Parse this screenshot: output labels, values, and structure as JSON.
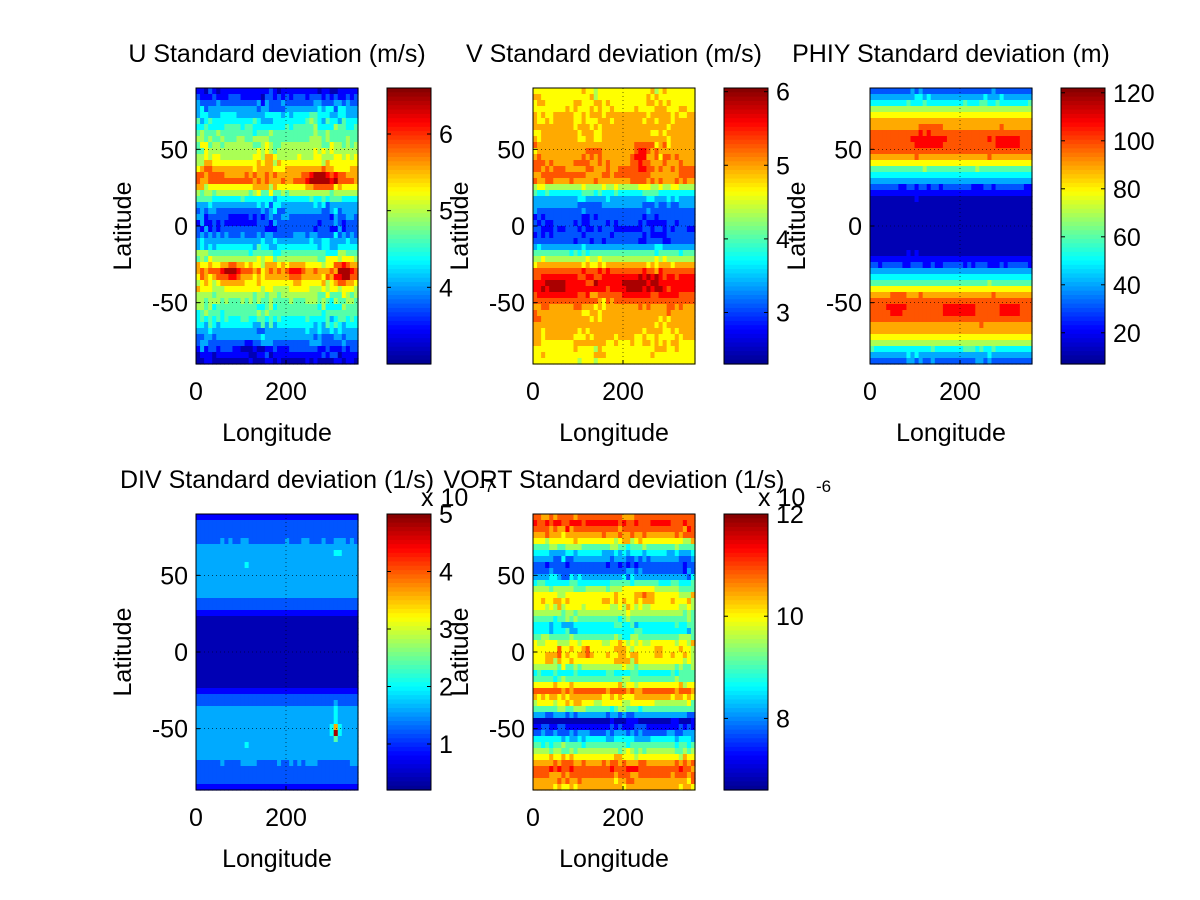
{
  "colormap": [
    "#00008F",
    "#0000FF",
    "#0080FF",
    "#00FFFF",
    "#80FF80",
    "#FFFF00",
    "#FF8000",
    "#FF0000",
    "#800000"
  ],
  "chart_data": [
    {
      "id": "u",
      "type": "heatmap",
      "title": "U Standard deviation (m/s)",
      "xlabel": "Longitude",
      "ylabel": "Latitude",
      "xlim": [
        0,
        360
      ],
      "ylim": [
        -90,
        90
      ],
      "xticks": [
        "0",
        "200"
      ],
      "yticks": [
        "-50",
        "0",
        "50"
      ],
      "colorbar": {
        "min": 3,
        "max": 6.6,
        "ticks": [
          "4",
          "5",
          "6"
        ],
        "tick_values": [
          4,
          5,
          6
        ],
        "exponent": ""
      },
      "grid": true,
      "lat_profile": [
        [
          -90,
          3.2
        ],
        [
          -75,
          3.9
        ],
        [
          -60,
          4.5
        ],
        [
          -45,
          4.9
        ],
        [
          -30,
          5.7
        ],
        [
          -15,
          4.4
        ],
        [
          0,
          3.6
        ],
        [
          15,
          4.2
        ],
        [
          30,
          5.8
        ],
        [
          45,
          5.1
        ],
        [
          60,
          4.7
        ],
        [
          75,
          4.1
        ],
        [
          90,
          3.3
        ]
      ],
      "features": [
        {
          "lon": 280,
          "lat": 30,
          "amp": 1.0,
          "sx": 30,
          "sy": 6
        },
        {
          "lon": 80,
          "lat": -30,
          "amp": 0.9,
          "sx": 22,
          "sy": 6
        },
        {
          "lon": 330,
          "lat": -30,
          "amp": 1.0,
          "sx": 20,
          "sy": 7
        },
        {
          "lon": 220,
          "lat": -30,
          "amp": 0.5,
          "sx": 20,
          "sy": 6
        },
        {
          "lon": 260,
          "lat": 70,
          "amp": 0.6,
          "sx": 12,
          "sy": 5
        },
        {
          "lon": 120,
          "lat": -80,
          "amp": -0.5,
          "sx": 25,
          "sy": 5
        },
        {
          "lon": 100,
          "lat": 5,
          "amp": -0.4,
          "sx": 40,
          "sy": 6
        }
      ],
      "noise": 0.35
    },
    {
      "id": "v",
      "type": "heatmap",
      "title": "V Standard deviation (m/s)",
      "xlabel": "Longitude",
      "ylabel": "Latitude",
      "xlim": [
        0,
        360
      ],
      "ylim": [
        -90,
        90
      ],
      "xticks": [
        "0",
        "200"
      ],
      "yticks": [
        "-50",
        "0",
        "50"
      ],
      "colorbar": {
        "min": 2.3,
        "max": 6.05,
        "ticks": [
          "3",
          "4",
          "5",
          "6"
        ],
        "tick_values": [
          3,
          4,
          5,
          6
        ],
        "exponent": ""
      },
      "grid": true,
      "lat_profile": [
        [
          -90,
          4.6
        ],
        [
          -75,
          4.8
        ],
        [
          -55,
          5.0
        ],
        [
          -40,
          5.6
        ],
        [
          -30,
          5.4
        ],
        [
          -20,
          4.2
        ],
        [
          -10,
          3.0
        ],
        [
          0,
          2.9
        ],
        [
          10,
          3.1
        ],
        [
          20,
          3.6
        ],
        [
          30,
          5.2
        ],
        [
          40,
          5.1
        ],
        [
          55,
          4.9
        ],
        [
          75,
          4.8
        ],
        [
          90,
          4.6
        ]
      ],
      "features": [
        {
          "lon": 50,
          "lat": -38,
          "amp": 0.5,
          "sx": 25,
          "sy": 6
        },
        {
          "lon": 230,
          "lat": -38,
          "amp": 0.4,
          "sx": 35,
          "sy": 6
        },
        {
          "lon": 240,
          "lat": 45,
          "amp": 0.6,
          "sx": 15,
          "sy": 10
        },
        {
          "lon": 150,
          "lat": -50,
          "amp": -0.3,
          "sx": 30,
          "sy": 8
        }
      ],
      "noise": 0.25
    },
    {
      "id": "phiy",
      "type": "heatmap",
      "title": "PHIY Standard deviation (m)",
      "xlabel": "Longitude",
      "ylabel": "Latitude",
      "xlim": [
        0,
        360
      ],
      "ylim": [
        -90,
        90
      ],
      "xticks": [
        "0",
        "200"
      ],
      "yticks": [
        "-50",
        "0",
        "50"
      ],
      "colorbar": {
        "min": 7,
        "max": 122,
        "ticks": [
          "20",
          "40",
          "60",
          "80",
          "100",
          "120"
        ],
        "tick_values": [
          20,
          40,
          60,
          80,
          100,
          120
        ],
        "exponent": ""
      },
      "grid": true,
      "lat_profile": [
        [
          -90,
          30
        ],
        [
          -80,
          55
        ],
        [
          -70,
          85
        ],
        [
          -55,
          103
        ],
        [
          -45,
          92
        ],
        [
          -35,
          55
        ],
        [
          -25,
          25
        ],
        [
          -15,
          12
        ],
        [
          0,
          9
        ],
        [
          15,
          12
        ],
        [
          25,
          25
        ],
        [
          35,
          55
        ],
        [
          45,
          92
        ],
        [
          55,
          103
        ],
        [
          70,
          85
        ],
        [
          80,
          55
        ],
        [
          90,
          30
        ]
      ],
      "features": [
        {
          "lon": 130,
          "lat": 58,
          "amp": 10,
          "sx": 35,
          "sy": 6
        },
        {
          "lon": 300,
          "lat": 55,
          "amp": 10,
          "sx": 25,
          "sy": 7
        },
        {
          "lon": 200,
          "lat": -55,
          "amp": 12,
          "sx": 30,
          "sy": 6
        },
        {
          "lon": 310,
          "lat": -55,
          "amp": 10,
          "sx": 20,
          "sy": 6
        },
        {
          "lon": 60,
          "lat": -52,
          "amp": 6,
          "sx": 25,
          "sy": 6
        }
      ],
      "noise": 2
    },
    {
      "id": "div",
      "type": "heatmap",
      "title": "DIV Standard deviation (1/s)",
      "xlabel": "Longitude",
      "ylabel": "Latitude",
      "xlim": [
        0,
        360
      ],
      "ylim": [
        -90,
        90
      ],
      "xticks": [
        "0",
        "200"
      ],
      "yticks": [
        "-50",
        "0",
        "50"
      ],
      "colorbar": {
        "min": 0.2,
        "max": 5,
        "ticks": [
          "1",
          "2",
          "3",
          "4",
          "5"
        ],
        "tick_values": [
          1,
          2,
          3,
          4,
          5
        ],
        "exponent": "-7"
      },
      "grid": true,
      "lat_profile": [
        [
          -90,
          0.9
        ],
        [
          -75,
          1.35
        ],
        [
          -55,
          1.7
        ],
        [
          -40,
          1.6
        ],
        [
          -30,
          1.1
        ],
        [
          -20,
          0.4
        ],
        [
          0,
          0.35
        ],
        [
          20,
          0.4
        ],
        [
          30,
          1.1
        ],
        [
          40,
          1.6
        ],
        [
          55,
          1.7
        ],
        [
          75,
          1.35
        ],
        [
          90,
          0.9
        ]
      ],
      "features": [
        {
          "lon": 310,
          "lat": -52,
          "amp": 3.3,
          "sx": 6,
          "sy": 4
        },
        {
          "lon": 310,
          "lat": -40,
          "amp": 0.6,
          "sx": 6,
          "sy": 8
        },
        {
          "lon": 315,
          "lat": 65,
          "amp": 0.5,
          "sx": 6,
          "sy": 6
        },
        {
          "lon": 110,
          "lat": 57,
          "amp": 0.3,
          "sx": 5,
          "sy": 5
        },
        {
          "lon": 110,
          "lat": -62,
          "amp": 0.3,
          "sx": 5,
          "sy": 5
        }
      ],
      "noise": 0.05
    },
    {
      "id": "vort",
      "type": "heatmap",
      "title": "VORT Standard deviation (1/s)",
      "xlabel": "Longitude",
      "ylabel": "Latitude",
      "xlim": [
        0,
        360
      ],
      "ylim": [
        -90,
        90
      ],
      "xticks": [
        "0",
        "200"
      ],
      "yticks": [
        "-50",
        "0",
        "50"
      ],
      "colorbar": {
        "min": 6.6,
        "max": 12,
        "ticks": [
          "8",
          "10",
          "12"
        ],
        "tick_values": [
          8,
          10,
          12
        ],
        "exponent": "-6"
      },
      "grid": true,
      "lat_profile": [
        [
          -90,
          10.2
        ],
        [
          -75,
          11.0
        ],
        [
          -65,
          9.5
        ],
        [
          -55,
          8.2
        ],
        [
          -45,
          7.0
        ],
        [
          -35,
          9.5
        ],
        [
          -25,
          10.8
        ],
        [
          -15,
          8.6
        ],
        [
          -5,
          10.2
        ],
        [
          5,
          9.9
        ],
        [
          15,
          8.4
        ],
        [
          25,
          9.4
        ],
        [
          35,
          10.3
        ],
        [
          45,
          8.8
        ],
        [
          55,
          7.4
        ],
        [
          65,
          8.5
        ],
        [
          75,
          10.5
        ],
        [
          85,
          11.2
        ],
        [
          90,
          10.5
        ]
      ],
      "features": [
        {
          "lon": 120,
          "lat": 0,
          "amp": 1.0,
          "sx": 8,
          "sy": 4
        },
        {
          "lon": 200,
          "lat": 2,
          "amp": 1.0,
          "sx": 8,
          "sy": 4
        },
        {
          "lon": 60,
          "lat": -2,
          "amp": 0.8,
          "sx": 8,
          "sy": 4
        },
        {
          "lon": 280,
          "lat": 0,
          "amp": 0.8,
          "sx": 8,
          "sy": 4
        },
        {
          "lon": 250,
          "lat": 40,
          "amp": 0.8,
          "sx": 20,
          "sy": 5
        },
        {
          "lon": 100,
          "lat": -35,
          "amp": 0.8,
          "sx": 20,
          "sy": 5
        }
      ],
      "noise": 0.45
    }
  ]
}
